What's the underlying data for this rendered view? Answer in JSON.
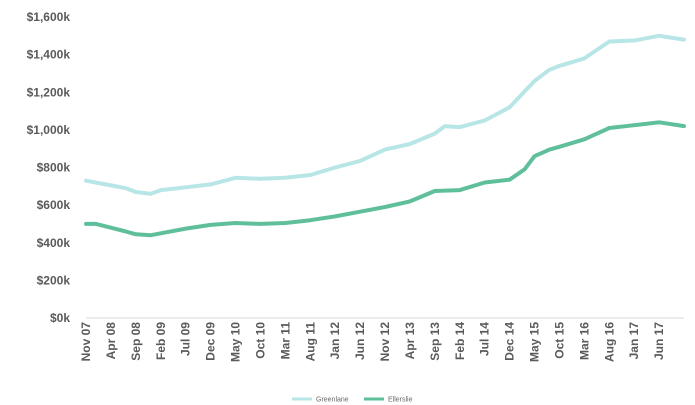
{
  "chart_data": {
    "type": "line",
    "title": "",
    "xlabel": "",
    "ylabel": "",
    "ylim": [
      0,
      1600
    ],
    "y_ticks": [
      0,
      200,
      400,
      600,
      800,
      1000,
      1200,
      1400,
      1600
    ],
    "y_tick_labels": [
      "$0k",
      "$200k",
      "$400k",
      "$600k",
      "$800k",
      "$1,000k",
      "$1,200k",
      "$1,400k",
      "$1,600k"
    ],
    "x_start": "Nov 07",
    "x_end": "Nov 17",
    "x_tick_labels": [
      "Nov 07",
      "Apr 08",
      "Sep 08",
      "Feb 09",
      "Jul 09",
      "Dec 09",
      "May 10",
      "Oct 10",
      "Mar 11",
      "Aug 11",
      "Jan 12",
      "Jun 12",
      "Nov 12",
      "Apr 13",
      "Sep 13",
      "Feb 14",
      "Jul 14",
      "Dec 14",
      "May 15",
      "Oct 15",
      "Mar 16",
      "Aug 16",
      "Jan 17",
      "Jun 17"
    ],
    "grid": false,
    "legend_position": "bottom-center",
    "series": [
      {
        "name": "Greenlane",
        "color": "#b8e6e6",
        "points": [
          [
            "Nov 07",
            730
          ],
          [
            "Feb 08",
            715
          ],
          [
            "Apr 08",
            705
          ],
          [
            "Jul 08",
            690
          ],
          [
            "Sep 08",
            670
          ],
          [
            "Dec 08",
            660
          ],
          [
            "Feb 09",
            680
          ],
          [
            "Jul 09",
            695
          ],
          [
            "Dec 09",
            710
          ],
          [
            "May 10",
            745
          ],
          [
            "Oct 10",
            740
          ],
          [
            "Mar 11",
            745
          ],
          [
            "Aug 11",
            760
          ],
          [
            "Jan 12",
            800
          ],
          [
            "Jun 12",
            835
          ],
          [
            "Nov 12",
            895
          ],
          [
            "Apr 13",
            925
          ],
          [
            "Sep 13",
            980
          ],
          [
            "Nov 13",
            1020
          ],
          [
            "Feb 14",
            1015
          ],
          [
            "Jul 14",
            1050
          ],
          [
            "Dec 14",
            1120
          ],
          [
            "May 15",
            1260
          ],
          [
            "Aug 15",
            1320
          ],
          [
            "Oct 15",
            1340
          ],
          [
            "Mar 16",
            1380
          ],
          [
            "Aug 16",
            1470
          ],
          [
            "Jan 17",
            1475
          ],
          [
            "Jun 17",
            1500
          ],
          [
            "Nov 17",
            1480
          ]
        ]
      },
      {
        "name": "Ellerslie",
        "color": "#5fbf9b",
        "points": [
          [
            "Nov 07",
            500
          ],
          [
            "Jan 08",
            500
          ],
          [
            "Apr 08",
            480
          ],
          [
            "Jul 08",
            460
          ],
          [
            "Sep 08",
            445
          ],
          [
            "Dec 08",
            440
          ],
          [
            "Feb 09",
            450
          ],
          [
            "Jul 09",
            475
          ],
          [
            "Dec 09",
            495
          ],
          [
            "May 10",
            505
          ],
          [
            "Oct 10",
            500
          ],
          [
            "Mar 11",
            505
          ],
          [
            "Aug 11",
            520
          ],
          [
            "Jan 12",
            540
          ],
          [
            "Jun 12",
            565
          ],
          [
            "Nov 12",
            590
          ],
          [
            "Apr 13",
            620
          ],
          [
            "Sep 13",
            675
          ],
          [
            "Feb 14",
            680
          ],
          [
            "Jul 14",
            720
          ],
          [
            "Dec 14",
            735
          ],
          [
            "Mar 15",
            790
          ],
          [
            "May 15",
            860
          ],
          [
            "Aug 15",
            895
          ],
          [
            "Oct 15",
            910
          ],
          [
            "Mar 16",
            950
          ],
          [
            "Aug 16",
            1010
          ],
          [
            "Jan 17",
            1025
          ],
          [
            "Jun 17",
            1040
          ],
          [
            "Nov 17",
            1020
          ]
        ]
      }
    ]
  }
}
